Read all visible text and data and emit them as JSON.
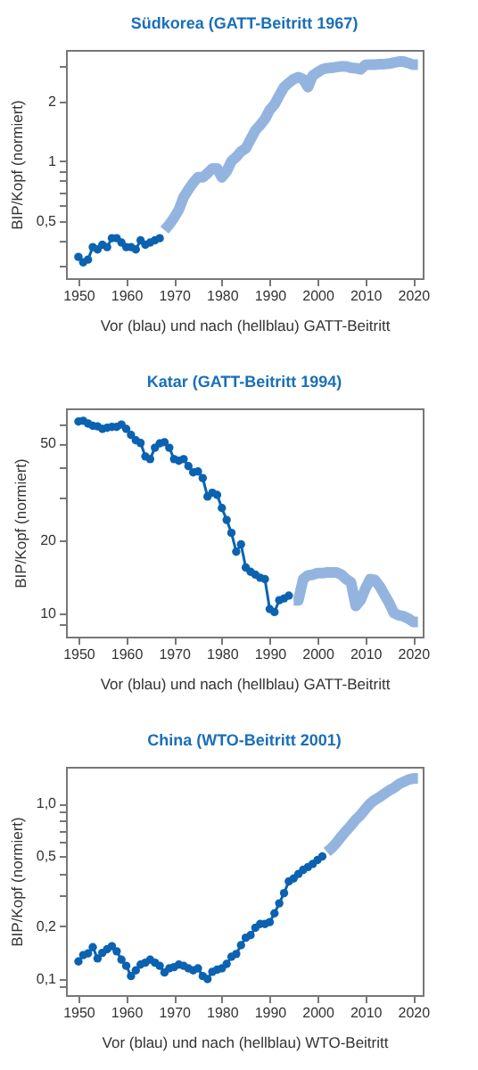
{
  "chart_data": [
    {
      "type": "line",
      "title": "Südkorea (GATT-Beitritt 1967)",
      "xlabel": "Vor (blau) und nach (hellblau) GATT-Beitritt",
      "ylabel": "BIP/Kopf (normiert)",
      "log": "y",
      "grid": false,
      "xlim": [
        1947.4,
        2022
      ],
      "xticks": [
        1950,
        1960,
        1970,
        1980,
        1990,
        2000,
        2010,
        2020
      ],
      "ylim": [
        0.258,
        3.63
      ],
      "yticks": [
        {
          "value": 0.3,
          "label": null
        },
        {
          "value": 0.4,
          "label": null
        },
        {
          "value": 0.5,
          "label": "0,5"
        },
        {
          "value": 0.6,
          "label": null
        },
        {
          "value": 0.7,
          "label": null
        },
        {
          "value": 0.8,
          "label": null
        },
        {
          "value": 0.9,
          "label": null
        },
        1,
        2,
        {
          "value": 3,
          "label": null
        }
      ],
      "series": [
        {
          "color": "#0b62b0",
          "marker": "circle",
          "x": [
            1950,
            1951,
            1952,
            1953,
            1954,
            1955,
            1956,
            1957,
            1958,
            1959,
            1960,
            1961,
            1962,
            1963,
            1964,
            1965,
            1966,
            1967
          ],
          "values": [
            0.33,
            0.31,
            0.32,
            0.37,
            0.36,
            0.38,
            0.37,
            0.41,
            0.41,
            0.39,
            0.37,
            0.37,
            0.36,
            0.4,
            0.38,
            0.39,
            0.4,
            0.41
          ]
        },
        {
          "color": "#94b4e0",
          "marker": "none",
          "x": [
            1968,
            1969,
            1970,
            1971,
            1972,
            1973,
            1974,
            1975,
            1976,
            1977,
            1978,
            1979,
            1980,
            1981,
            1982,
            1983,
            1984,
            1985,
            1986,
            1987,
            1988,
            1989,
            1990,
            1991,
            1992,
            1993,
            1994,
            1995,
            1996,
            1997,
            1998,
            1999,
            2000,
            2001,
            2002,
            2003,
            2004,
            2005,
            2006,
            2007,
            2008,
            2009,
            2010,
            2011,
            2012,
            2013,
            2014,
            2015,
            2016,
            2017,
            2018,
            2019,
            2020,
            2021
          ],
          "values": [
            0.45,
            0.48,
            0.52,
            0.57,
            0.66,
            0.72,
            0.78,
            0.83,
            0.83,
            0.87,
            0.92,
            0.92,
            0.83,
            0.89,
            1.0,
            1.05,
            1.12,
            1.16,
            1.29,
            1.43,
            1.52,
            1.63,
            1.81,
            1.93,
            2.14,
            2.36,
            2.48,
            2.59,
            2.65,
            2.59,
            2.36,
            2.7,
            2.8,
            2.9,
            2.94,
            2.95,
            2.98,
            3.0,
            3.0,
            2.95,
            2.94,
            2.9,
            3.05,
            3.06,
            3.06,
            3.08,
            3.08,
            3.1,
            3.14,
            3.17,
            3.17,
            3.12,
            3.06,
            3.06
          ]
        }
      ]
    },
    {
      "type": "line",
      "title": "Katar (GATT-Beitritt 1994)",
      "xlabel": "Vor (blau) und nach (hellblau) GATT-Beitritt",
      "ylabel": "BIP/Kopf (normiert)",
      "log": "y",
      "grid": false,
      "xlim": [
        1947.4,
        2022
      ],
      "xticks": [
        1950,
        1960,
        1970,
        1980,
        1990,
        2000,
        2010,
        2020
      ],
      "ylim": [
        8,
        69.7
      ],
      "yticks": [
        {
          "value": 9,
          "label": null
        },
        10,
        20,
        {
          "value": 30,
          "label": null
        },
        {
          "value": 40,
          "label": null
        },
        50,
        {
          "value": 60,
          "label": null
        }
      ],
      "series": [
        {
          "color": "#0b62b0",
          "marker": "circle",
          "x": [
            1950,
            1951,
            1952,
            1953,
            1954,
            1955,
            1956,
            1957,
            1958,
            1959,
            1960,
            1961,
            1962,
            1963,
            1964,
            1965,
            1966,
            1967,
            1968,
            1969,
            1970,
            1971,
            1972,
            1973,
            1974,
            1975,
            1976,
            1977,
            1978,
            1979,
            1980,
            1981,
            1982,
            1983,
            1984,
            1985,
            1986,
            1987,
            1988,
            1989,
            1990,
            1991,
            1992,
            1993,
            1994
          ],
          "values": [
            61.5,
            62,
            60.4,
            59.1,
            58.8,
            57.4,
            58,
            58.5,
            58.5,
            59.8,
            57.4,
            54.2,
            51.5,
            50.2,
            44.2,
            43.1,
            48,
            50,
            50.6,
            48,
            43.1,
            42.4,
            43.1,
            40.3,
            38.0,
            38.3,
            36.0,
            30.2,
            31.3,
            30.7,
            27.1,
            24.2,
            21.4,
            17.9,
            19.2,
            15.4,
            14.8,
            14.4,
            14.0,
            13.8,
            10.4,
            10.1,
            11.3,
            11.5,
            11.8
          ]
        },
        {
          "color": "#94b4e0",
          "marker": "none",
          "x": [
            1995,
            1996,
            1997,
            1998,
            1999,
            2000,
            2001,
            2002,
            2003,
            2004,
            2005,
            2006,
            2007,
            2008,
            2009,
            2010,
            2011,
            2012,
            2013,
            2014,
            2015,
            2016,
            2017,
            2018,
            2019,
            2020,
            2021
          ],
          "values": [
            11.3,
            11.3,
            13.8,
            14.3,
            14.4,
            14.6,
            14.6,
            14.7,
            14.7,
            14.7,
            14.4,
            13.8,
            13.4,
            10.7,
            11.3,
            12.6,
            13.8,
            13.7,
            12.9,
            11.9,
            11.0,
            10.0,
            9.8,
            9.7,
            9.5,
            9.2,
            9.2
          ]
        }
      ]
    },
    {
      "type": "line",
      "title": "China (WTO-Beitritt 2001)",
      "xlabel": "Vor (blau) und nach (hellblau) WTO-Beitritt",
      "ylabel": "BIP/Kopf (normiert)",
      "log": "y",
      "grid": false,
      "xlim": [
        1947.4,
        2022
      ],
      "xticks": [
        1950,
        1960,
        1970,
        1980,
        1990,
        2000,
        2010,
        2020
      ],
      "ylim": [
        0.081,
        1.62
      ],
      "yticks": [
        {
          "value": 0.09,
          "label": null
        },
        {
          "value": 0.1,
          "label": "0,1"
        },
        {
          "value": 0.2,
          "label": "0,2"
        },
        {
          "value": 0.3,
          "label": null
        },
        {
          "value": 0.4,
          "label": null
        },
        {
          "value": 0.5,
          "label": "0,5"
        },
        {
          "value": 0.6,
          "label": null
        },
        {
          "value": 0.7,
          "label": null
        },
        {
          "value": 0.8,
          "label": null
        },
        {
          "value": 0.9,
          "label": null
        },
        {
          "value": 1,
          "label": "1,0"
        }
      ],
      "series": [
        {
          "color": "#0b62b0",
          "marker": "circle",
          "x": [
            1950,
            1951,
            1952,
            1953,
            1954,
            1955,
            1956,
            1957,
            1958,
            1959,
            1960,
            1961,
            1962,
            1963,
            1964,
            1965,
            1966,
            1967,
            1968,
            1969,
            1970,
            1971,
            1972,
            1973,
            1974,
            1975,
            1976,
            1977,
            1978,
            1979,
            1980,
            1981,
            1982,
            1983,
            1984,
            1985,
            1986,
            1987,
            1988,
            1989,
            1990,
            1991,
            1992,
            1993,
            1994,
            1995,
            1996,
            1997,
            1998,
            1999,
            2000,
            2001
          ],
          "values": [
            0.126,
            0.137,
            0.14,
            0.152,
            0.131,
            0.141,
            0.148,
            0.154,
            0.144,
            0.129,
            0.119,
            0.104,
            0.112,
            0.121,
            0.124,
            0.129,
            0.124,
            0.119,
            0.109,
            0.115,
            0.117,
            0.121,
            0.119,
            0.115,
            0.112,
            0.115,
            0.104,
            0.1,
            0.11,
            0.113,
            0.115,
            0.122,
            0.134,
            0.139,
            0.156,
            0.172,
            0.178,
            0.196,
            0.206,
            0.206,
            0.211,
            0.237,
            0.27,
            0.309,
            0.36,
            0.374,
            0.397,
            0.419,
            0.435,
            0.453,
            0.477,
            0.5
          ]
        },
        {
          "color": "#94b4e0",
          "marker": "none",
          "x": [
            2002,
            2003,
            2004,
            2005,
            2006,
            2007,
            2008,
            2009,
            2010,
            2011,
            2012,
            2013,
            2014,
            2015,
            2016,
            2017,
            2018,
            2019,
            2020,
            2021
          ],
          "values": [
            0.53,
            0.56,
            0.6,
            0.65,
            0.7,
            0.75,
            0.81,
            0.86,
            0.93,
            1.0,
            1.05,
            1.09,
            1.14,
            1.19,
            1.23,
            1.29,
            1.33,
            1.37,
            1.39,
            1.39
          ]
        }
      ]
    }
  ]
}
